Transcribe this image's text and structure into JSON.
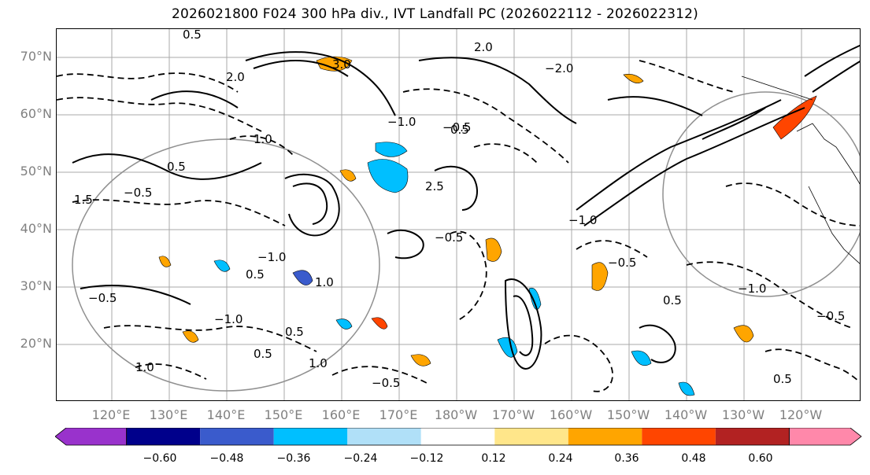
{
  "title": "2026021800 F024 300 hPa div., IVT Landfall PC (2026022112 - 2026022312)",
  "lat_labels": [
    "70°N",
    "60°N",
    "50°N",
    "40°N",
    "30°N",
    "20°N"
  ],
  "lon_labels": [
    "120°E",
    "130°E",
    "140°E",
    "150°E",
    "160°E",
    "170°E",
    "180°W",
    "170°W",
    "160°W",
    "150°W",
    "140°W",
    "130°W",
    "120°W"
  ],
  "colorbar": {
    "labels": [
      "−0.60",
      "−0.48",
      "−0.36",
      "−0.24",
      "−0.12",
      "0.12",
      "0.24",
      "0.36",
      "0.48",
      "0.60"
    ],
    "colors": [
      "#9932cc",
      "#00008b",
      "#3a5bcc",
      "#00bfff",
      "#b0e0f8",
      "#ffffff",
      "#ffe68a",
      "#ffa500",
      "#ff4500",
      "#b22222",
      "#ff88aa"
    ]
  },
  "contour_labels": [
    "0.5",
    "−0.5",
    "1.0",
    "−1.0",
    "1.5",
    "−1.5",
    "2.0",
    "−2.0",
    "3.0",
    "2.5"
  ]
}
